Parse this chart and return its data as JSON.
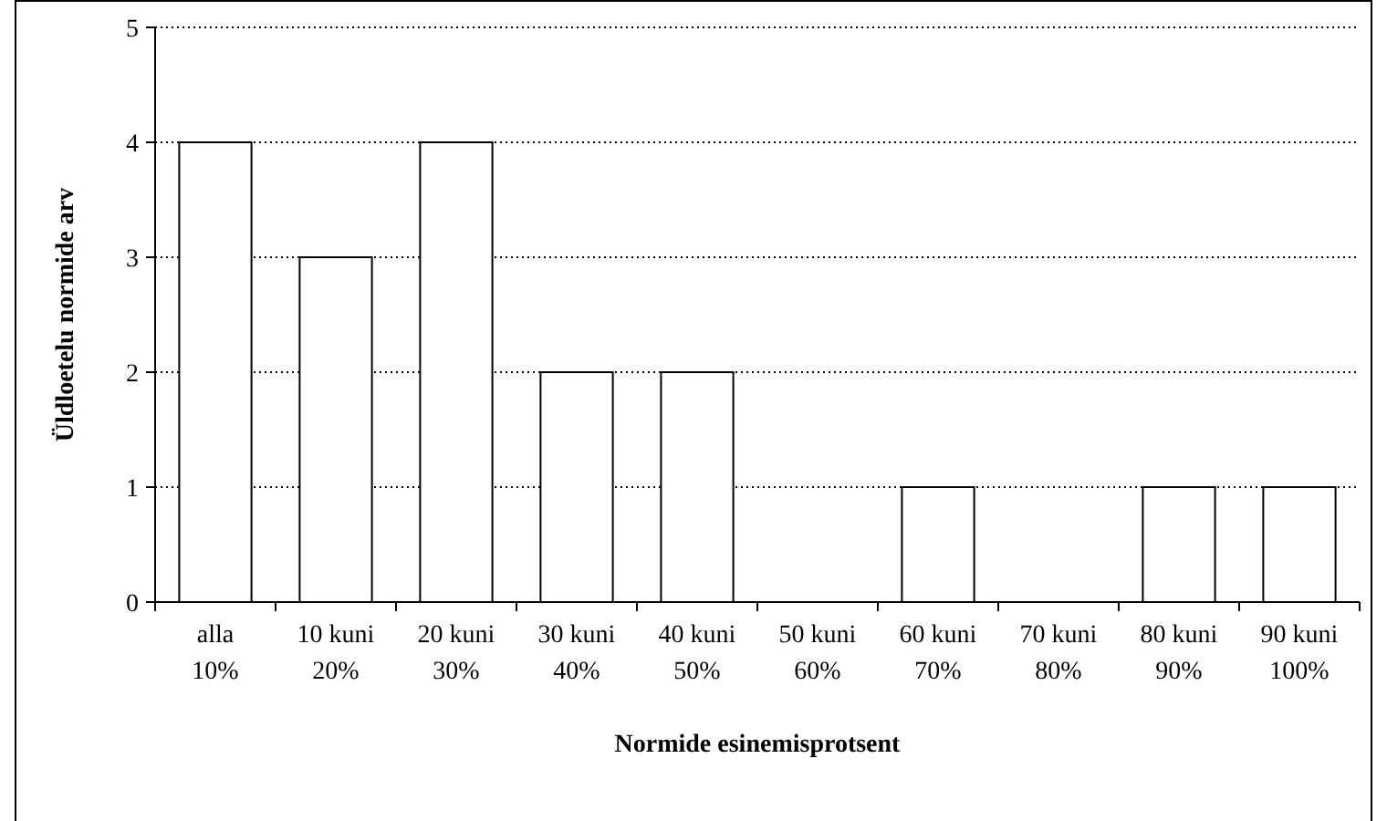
{
  "chart_data": {
    "type": "bar",
    "xlabel": "Normide esinemisprotsent",
    "ylabel": "Üldloetelu normide arv",
    "categories": [
      "alla 10%",
      "10 kuni 20%",
      "20 kuni 30%",
      "30 kuni 40%",
      "40 kuni 50%",
      "50 kuni 60%",
      "60 kuni 70%",
      "70 kuni 80%",
      "80 kuni 90%",
      "90 kuni 100%"
    ],
    "values": [
      4,
      3,
      4,
      2,
      2,
      0,
      1,
      0,
      1,
      1
    ],
    "color": "#ffffff",
    "ylim": [
      0,
      5
    ],
    "yticks": [
      0,
      1,
      2,
      3,
      4,
      5
    ],
    "grid": "y"
  }
}
